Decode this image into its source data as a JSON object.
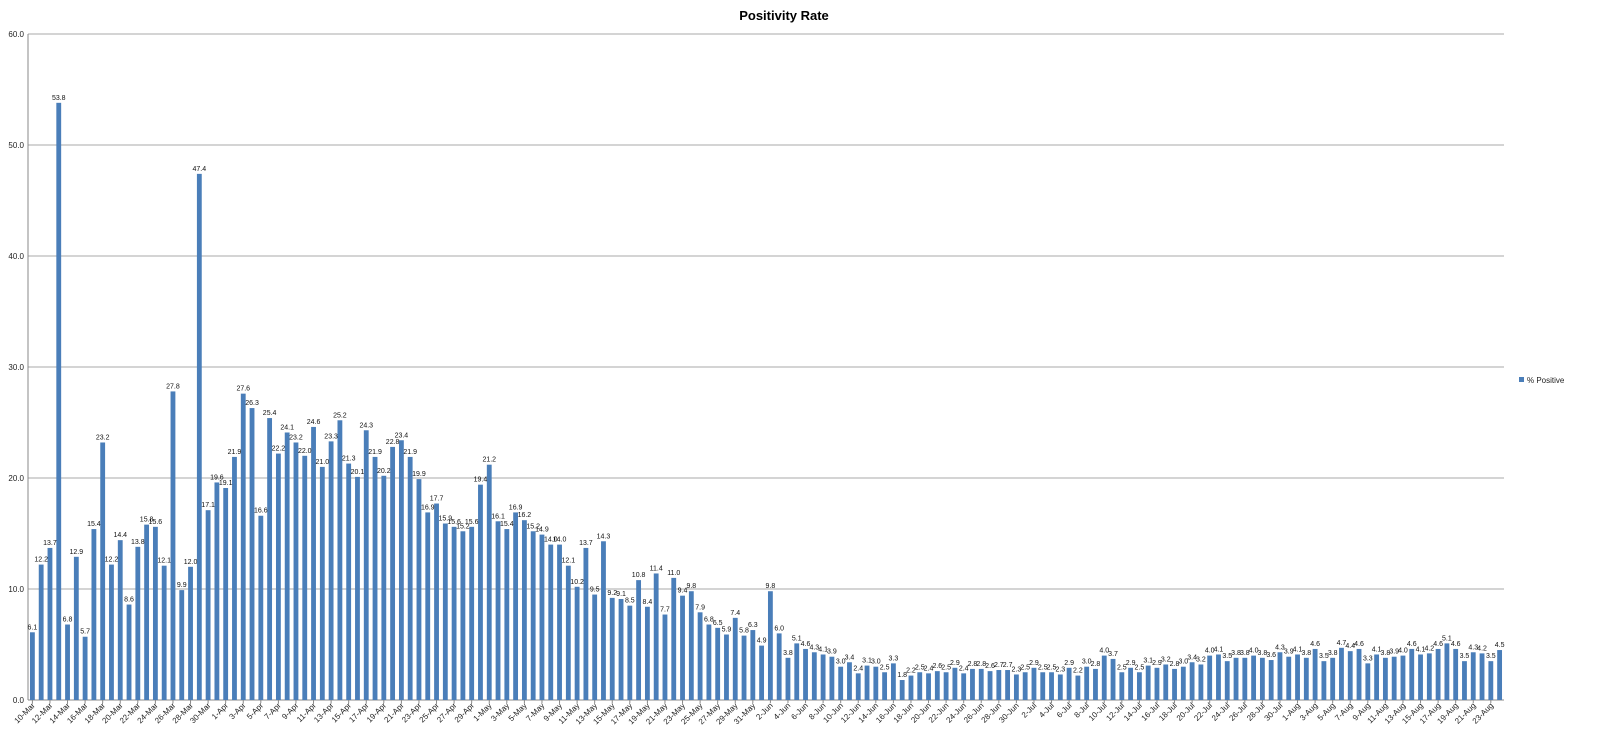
{
  "chart_data": {
    "type": "bar",
    "title": "Positivity Rate",
    "ylim": [
      0,
      60
    ],
    "y_ticks": [
      "0.0",
      "10.0",
      "20.0",
      "30.0",
      "40.0",
      "50.0",
      "60.0"
    ],
    "grid": true,
    "legend_position": "right",
    "x_tick_labels": [
      "10-Mar",
      "12-Mar",
      "14-Mar",
      "16-Mar",
      "18-Mar",
      "20-Mar",
      "22-Mar",
      "24-Mar",
      "26-Mar",
      "28-Mar",
      "30-Mar",
      "1-Apr",
      "3-Apr",
      "5-Apr",
      "7-Apr",
      "9-Apr",
      "11-Apr",
      "13-Apr",
      "15-Apr",
      "17-Apr",
      "19-Apr",
      "21-Apr",
      "23-Apr",
      "25-Apr",
      "27-Apr",
      "29-Apr",
      "1-May",
      "3-May",
      "5-May",
      "7-May",
      "9-May",
      "11-May",
      "13-May",
      "15-May",
      "17-May",
      "19-May",
      "21-May",
      "23-May",
      "25-May",
      "27-May",
      "29-May",
      "31-May",
      "2-Jun",
      "4-Jun",
      "6-Jun",
      "8-Jun",
      "10-Jun",
      "12-Jun",
      "14-Jun",
      "16-Jun",
      "18-Jun",
      "20-Jun",
      "22-Jun",
      "24-Jun",
      "26-Jun",
      "28-Jun",
      "30-Jun",
      "2-Jul",
      "4-Jul",
      "6-Jul",
      "8-Jul",
      "10-Jul",
      "12-Jul",
      "14-Jul",
      "16-Jul",
      "18-Jul",
      "20-Jul",
      "22-Jul",
      "24-Jul",
      "26-Jul",
      "28-Jul",
      "30-Jul",
      "1-Aug",
      "3-Aug",
      "5-Aug",
      "7-Aug",
      "9-Aug",
      "11-Aug",
      "13-Aug",
      "15-Aug",
      "17-Aug",
      "19-Aug",
      "21-Aug",
      "23-Aug"
    ],
    "series": [
      {
        "name": "% Positive",
        "color": "#4a7eb9",
        "values": [
          6.1,
          12.2,
          13.7,
          53.8,
          6.8,
          12.9,
          5.7,
          15.4,
          23.2,
          12.2,
          14.4,
          8.6,
          13.8,
          15.8,
          15.6,
          12.1,
          27.8,
          9.9,
          12.0,
          47.4,
          17.1,
          19.6,
          19.1,
          21.9,
          27.6,
          26.3,
          16.6,
          25.4,
          22.2,
          24.1,
          23.2,
          22.0,
          24.6,
          21.0,
          23.3,
          25.2,
          21.3,
          20.1,
          24.3,
          21.9,
          20.2,
          22.8,
          23.4,
          21.9,
          19.9,
          16.9,
          17.7,
          15.9,
          15.6,
          15.2,
          15.6,
          19.4,
          21.2,
          16.1,
          15.4,
          16.9,
          16.2,
          15.2,
          14.9,
          14.0,
          14.0,
          12.1,
          10.2,
          13.7,
          9.5,
          14.3,
          9.2,
          9.1,
          8.5,
          10.8,
          8.4,
          11.4,
          7.7,
          11.0,
          9.4,
          9.8,
          7.9,
          6.8,
          6.5,
          5.9,
          7.4,
          5.8,
          6.3,
          4.9,
          9.8,
          6.0,
          3.8,
          5.1,
          4.6,
          4.3,
          4.1,
          3.9,
          3.0,
          3.4,
          2.4,
          3.1,
          3.0,
          2.5,
          3.3,
          1.8,
          2.2,
          2.5,
          2.4,
          2.6,
          2.5,
          2.9,
          2.4,
          2.8,
          2.8,
          2.6,
          2.7,
          2.7,
          2.3,
          2.5,
          2.9,
          2.5,
          2.5,
          2.3,
          2.9,
          2.2,
          3.0,
          2.8,
          4.0,
          3.7,
          2.5,
          2.9,
          2.5,
          3.1,
          2.9,
          3.2,
          2.8,
          3.0,
          3.4,
          3.2,
          4.0,
          4.1,
          3.5,
          3.8,
          3.8,
          4.0,
          3.8,
          3.6,
          4.3,
          3.9,
          4.1,
          3.8,
          4.6,
          3.5,
          3.8,
          4.7,
          4.4,
          4.6,
          3.3,
          4.1,
          3.8,
          3.9,
          4.0,
          4.6,
          4.1,
          4.2,
          4.6,
          5.1,
          4.6,
          3.5,
          4.3,
          4.2,
          3.5,
          4.5
        ],
        "labels": [
          "6.1",
          "12.2",
          "13.7",
          "53.8",
          "6.8",
          "12.9",
          "5.7",
          "15.4",
          "23.2",
          "12.2",
          "14.4",
          "8.6",
          "13.8",
          "15.8",
          "15.6",
          "12.1",
          "27.8",
          "9.9",
          "12.0",
          "47.4",
          "17.1",
          "19.6",
          "19.1",
          "21.9",
          "27.6",
          "26.3",
          "16.6",
          "25.4",
          "22.2",
          "24.1",
          "23.2",
          "22.0",
          "24.6",
          "21.0",
          "23.3",
          "25.2",
          "21.3",
          "20.1",
          "24.3",
          "21.9",
          "20.2",
          "22.8",
          "23.4",
          "21.9",
          "19.9",
          "16.9",
          "17.7",
          "15.9",
          "15.6",
          "15.2",
          "15.6",
          "19.4",
          "21.2",
          "16.1",
          "15.4",
          "16.9",
          "16.2",
          "15.2",
          "14.9",
          "14.0",
          "14.0",
          "12.1",
          "10.2",
          "13.7",
          "9.5",
          "14.3",
          "9.2",
          "9.1",
          "8.5",
          "10.8",
          "8.4",
          "11.4",
          "7.7",
          "11.0",
          "9.4",
          "9.8",
          "7.9",
          "6.8",
          "6.5",
          "5.9",
          "7.4",
          "5.8",
          "6.3",
          "4.9",
          "9.8",
          "6.0",
          "3.8",
          "5.1",
          "4.6",
          "4.3",
          "4.1",
          "3.9",
          "3.0",
          "3.4",
          "2.4",
          "3.1",
          "3.0",
          "2.5",
          "3.3",
          "1.8",
          "2.2",
          "2.5",
          "2.4",
          "2.6",
          "2.5",
          "2.9",
          "2.4",
          "2.8",
          "2.8",
          "2.6",
          "2.7",
          "2.7",
          "2.3",
          "2.5",
          "2.9",
          "2.5",
          "2.5",
          "2.3",
          "2.9",
          "2.2",
          "3.0",
          "2.8",
          "4.0",
          "3.7",
          "2.5",
          "2.9",
          "2.5",
          "3.1",
          "2.9",
          "3.2",
          "2.8",
          "3.0",
          "3.4",
          "3.2",
          "4.0",
          "4.1",
          "3.5",
          "3.8",
          "3.8",
          "4.0",
          "3.8",
          "3.6",
          "4.3",
          "3.9",
          "4.1",
          "3.8",
          "4.6",
          "3.5",
          "3.8",
          "4.7",
          "4.4",
          "4.6",
          "3.3",
          "4.1",
          "3.8",
          "3.9",
          "4.0",
          "4.6",
          "4.1",
          "4.2",
          "4.6",
          "5.1",
          "4.6",
          "3.5",
          "4.3",
          "4.2",
          "3.5",
          "4.5"
        ]
      }
    ]
  }
}
